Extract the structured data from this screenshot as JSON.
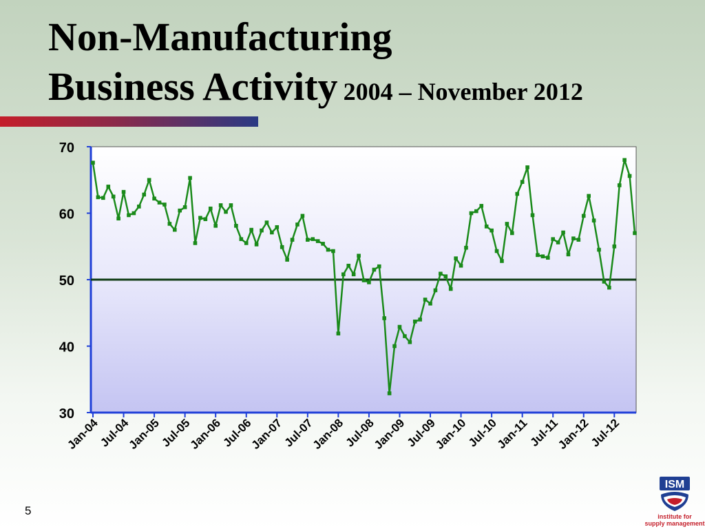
{
  "slide": {
    "title_line1": "Non-Manufacturing",
    "title_line2": "Business Activity",
    "title_sub": "2004 – November 2012",
    "page_number": "5",
    "logo_text": "ISM",
    "logo_caption_line1": "institute for",
    "logo_caption_line2": "supply management"
  },
  "chart_data": {
    "type": "line",
    "title": "",
    "xlabel": "",
    "ylabel": "",
    "ylim": [
      30,
      70
    ],
    "yticks": [
      30,
      40,
      50,
      60,
      70
    ],
    "xtick_labels": [
      "Jan-04",
      "Jul-04",
      "Jan-05",
      "Jul-05",
      "Jan-06",
      "Jul-06",
      "Jan-07",
      "Jul-07",
      "Jan-08",
      "Jul-08",
      "Jan-09",
      "Jul-09",
      "Jan-10",
      "Jul-10",
      "Jan-11",
      "Jul-11",
      "Jan-12",
      "Jul-12"
    ],
    "reference_line": 50,
    "line_color": "#1a8a1a",
    "reference_color": "#0e3a12",
    "values": [
      67.6,
      62.4,
      62.3,
      64.0,
      62.5,
      59.2,
      63.2,
      59.7,
      60.0,
      61.0,
      62.8,
      65.0,
      62.2,
      61.6,
      61.3,
      58.4,
      57.5,
      60.4,
      60.9,
      65.3,
      55.5,
      59.3,
      59.1,
      60.7,
      58.1,
      61.2,
      60.2,
      61.2,
      58.1,
      56.1,
      55.5,
      57.5,
      55.3,
      57.4,
      58.6,
      57.1,
      57.9,
      54.9,
      53.0,
      56.0,
      58.3,
      59.6,
      56.0,
      56.1,
      55.8,
      55.4,
      54.5,
      54.3,
      41.9,
      50.8,
      52.1,
      50.8,
      53.6,
      49.9,
      49.6,
      51.5,
      52.0,
      44.2,
      32.9,
      40.0,
      42.9,
      41.5,
      40.6,
      43.7,
      44.0,
      47.0,
      46.4,
      48.4,
      50.9,
      50.5,
      48.6,
      53.2,
      52.1,
      54.8,
      60.0,
      60.3,
      61.1,
      58.0,
      57.4,
      54.3,
      52.8,
      58.4,
      57.0,
      62.9,
      64.7,
      66.9,
      59.7,
      53.7,
      53.5,
      53.3,
      56.1,
      55.6,
      57.1,
      53.8,
      56.2,
      56.0,
      59.6,
      62.6,
      58.9,
      54.5,
      49.7,
      48.8,
      55.0,
      64.2,
      68.0,
      65.6,
      57.0
    ]
  }
}
